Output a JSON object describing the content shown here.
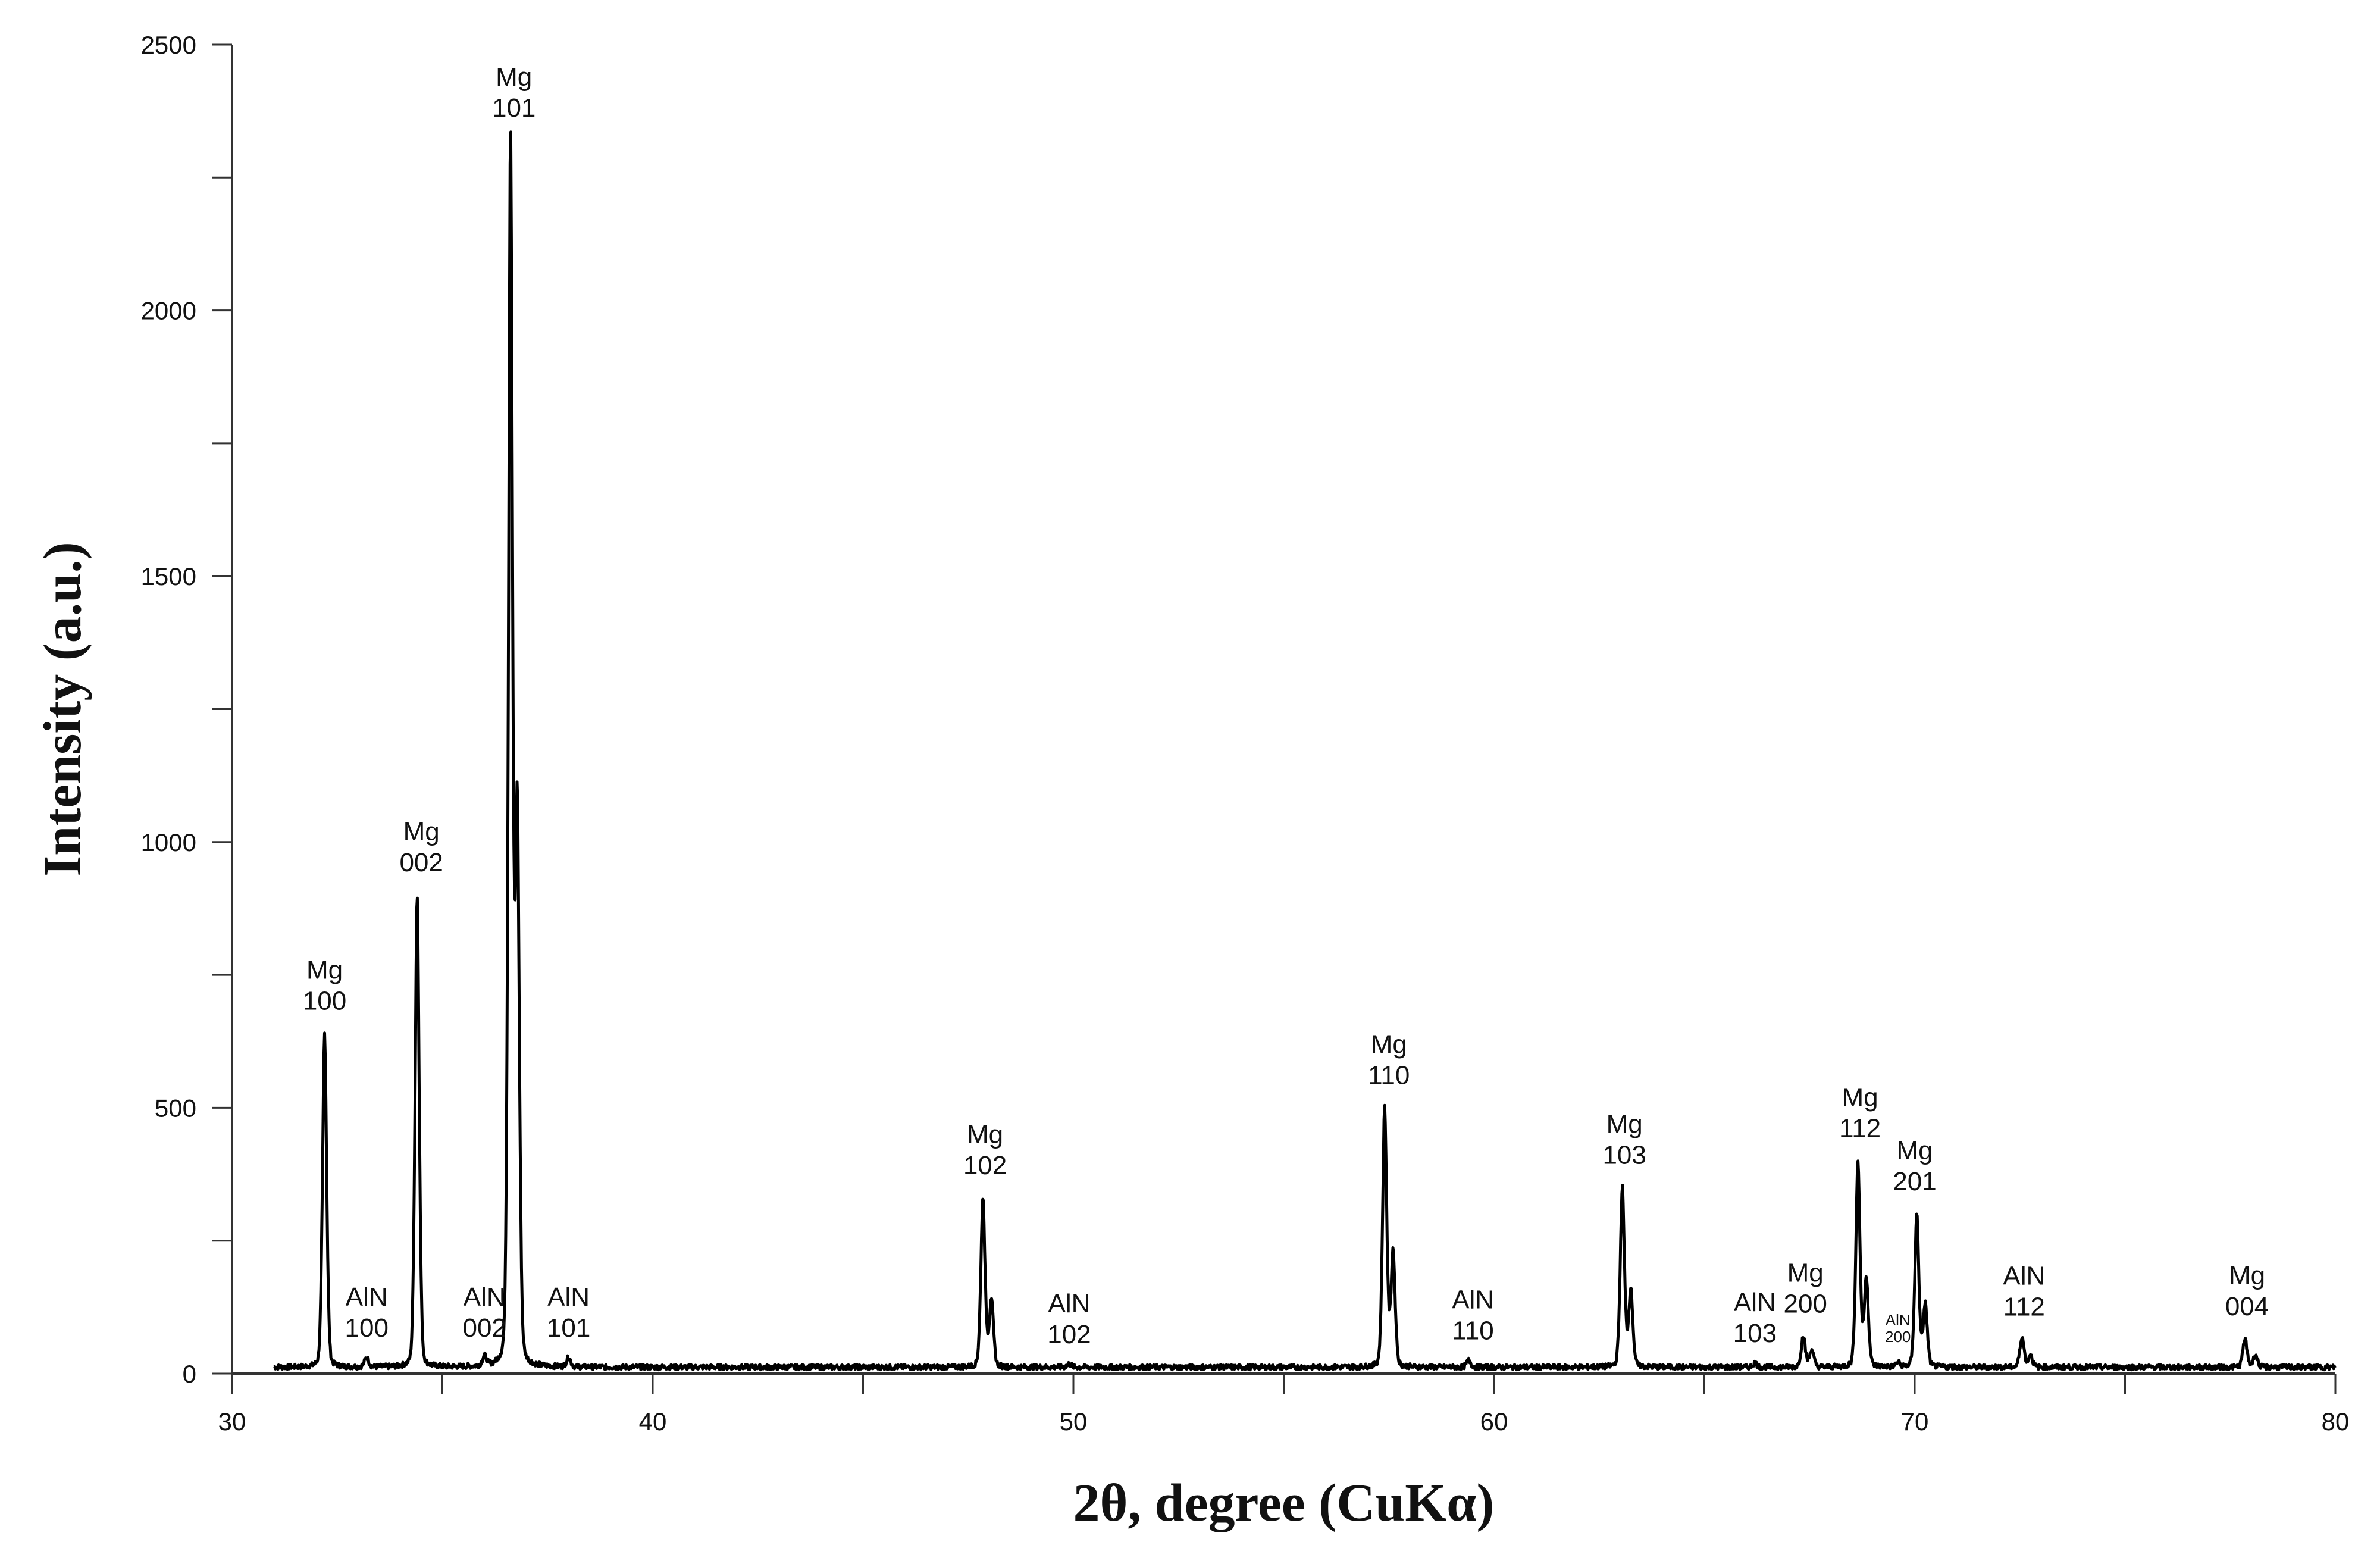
{
  "chart_data": {
    "type": "line",
    "title": "",
    "xlabel": "2θ, degree (CuKα)",
    "ylabel": "Intensity (a.u.)",
    "xlim": [
      30,
      80
    ],
    "ylim": [
      0,
      2500
    ],
    "x_ticks": [
      30,
      40,
      50,
      60,
      70,
      80
    ],
    "x_minor_ticks": [
      35,
      45,
      55,
      65,
      75
    ],
    "y_ticks": [
      0,
      500,
      1000,
      1500,
      2000,
      2500
    ],
    "y_minor_ticks": [
      250,
      750,
      1250,
      1750,
      2250
    ],
    "grid": false,
    "background_level": 12,
    "x_range": [
      31,
      80
    ],
    "series": [
      {
        "peaks": [
          {
            "x": 32.2,
            "y": 640
          },
          {
            "x": 33.2,
            "y": 30
          },
          {
            "x": 34.4,
            "y": 900
          },
          {
            "x": 36.0,
            "y": 30
          },
          {
            "x": 36.62,
            "y": 2320
          },
          {
            "x": 36.78,
            "y": 1050
          },
          {
            "x": 38.0,
            "y": 30
          },
          {
            "x": 47.85,
            "y": 330
          },
          {
            "x": 48.05,
            "y": 140
          },
          {
            "x": 49.9,
            "y": 18
          },
          {
            "x": 57.4,
            "y": 500
          },
          {
            "x": 57.6,
            "y": 230
          },
          {
            "x": 59.4,
            "y": 25
          },
          {
            "x": 63.05,
            "y": 350
          },
          {
            "x": 63.25,
            "y": 160
          },
          {
            "x": 66.2,
            "y": 20
          },
          {
            "x": 67.35,
            "y": 70
          },
          {
            "x": 67.55,
            "y": 45
          },
          {
            "x": 68.65,
            "y": 400
          },
          {
            "x": 68.85,
            "y": 180
          },
          {
            "x": 69.6,
            "y": 20
          },
          {
            "x": 70.05,
            "y": 300
          },
          {
            "x": 70.25,
            "y": 130
          },
          {
            "x": 72.55,
            "y": 70
          },
          {
            "x": 72.75,
            "y": 35
          },
          {
            "x": 77.85,
            "y": 65
          },
          {
            "x": 78.1,
            "y": 35
          }
        ]
      }
    ],
    "peak_labels": [
      {
        "phase": "Mg",
        "hkl": "100",
        "x": 32.2,
        "y": 640
      },
      {
        "phase": "AlN",
        "hkl": "100",
        "x": 33.2,
        "y": 30
      },
      {
        "phase": "Mg",
        "hkl": "002",
        "x": 34.5,
        "y": 900
      },
      {
        "phase": "AlN",
        "hkl": "002",
        "x": 36.0,
        "y": 30
      },
      {
        "phase": "Mg",
        "hkl": "101",
        "x": 36.7,
        "y": 2320
      },
      {
        "phase": "AlN",
        "hkl": "101",
        "x": 38.0,
        "y": 30
      },
      {
        "phase": "Mg",
        "hkl": "102",
        "x": 47.9,
        "y": 330
      },
      {
        "phase": "AlN",
        "hkl": "102",
        "x": 49.9,
        "y": 18
      },
      {
        "phase": "Mg",
        "hkl": "110",
        "x": 57.5,
        "y": 500
      },
      {
        "phase": "AlN",
        "hkl": "110",
        "x": 59.5,
        "y": 25
      },
      {
        "phase": "Mg",
        "hkl": "103",
        "x": 63.1,
        "y": 350
      },
      {
        "phase": "AlN",
        "hkl": "103",
        "x": 66.2,
        "y": 20
      },
      {
        "phase": "Mg",
        "hkl": "200",
        "x": 67.4,
        "y": 70
      },
      {
        "phase": "Mg",
        "hkl": "112",
        "x": 68.7,
        "y": 400
      },
      {
        "phase": "AlN",
        "hkl": "200",
        "x": 69.6,
        "y": 20,
        "small": true
      },
      {
        "phase": "Mg",
        "hkl": "201",
        "x": 70.0,
        "y": 300
      },
      {
        "phase": "AlN",
        "hkl": "112",
        "x": 72.6,
        "y": 70
      },
      {
        "phase": "Mg",
        "hkl": "004",
        "x": 77.9,
        "y": 65
      }
    ]
  },
  "colors": {
    "line": "#000000",
    "axis": "#333333",
    "text": "#111111"
  }
}
